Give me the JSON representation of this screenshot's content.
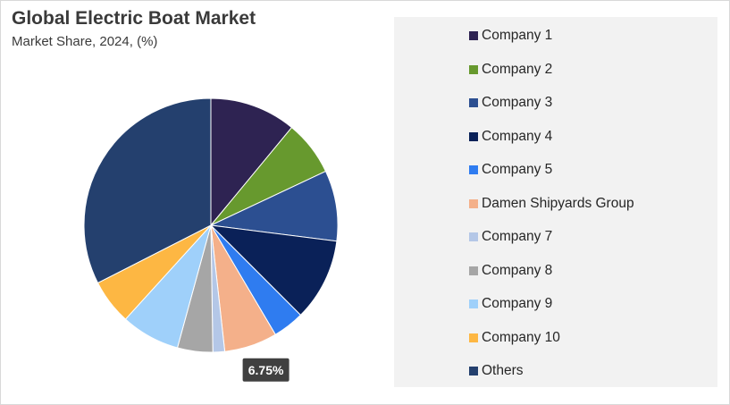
{
  "chart_data": {
    "type": "pie",
    "title": "Global Electric Boat Market",
    "subtitle": "Market Share, 2024, (%)",
    "slices": [
      {
        "label": "Company 1",
        "value": 11.0,
        "color": "#2e2352"
      },
      {
        "label": "Company 2",
        "value": 7.0,
        "color": "#67992e"
      },
      {
        "label": "Company 3",
        "value": 9.0,
        "color": "#2c4f91"
      },
      {
        "label": "Company 4",
        "value": 10.5,
        "color": "#0a2158"
      },
      {
        "label": "Company 5",
        "value": 4.0,
        "color": "#2f7cf0"
      },
      {
        "label": "Damen Shipyards Group",
        "value": 6.75,
        "color": "#f4b08a"
      },
      {
        "label": "Company 7",
        "value": 1.5,
        "color": "#b4c7e7"
      },
      {
        "label": "Company 8",
        "value": 4.5,
        "color": "#a6a6a6"
      },
      {
        "label": "Company 9",
        "value": 7.5,
        "color": "#9fd0fa"
      },
      {
        "label": "Company 10",
        "value": 5.75,
        "color": "#fdb743"
      },
      {
        "label": "Others",
        "value": 32.5,
        "color": "#24406e"
      }
    ],
    "data_labels": [
      {
        "slice": "Damen Shipyards Group",
        "text": "6.75%"
      }
    ],
    "legend_position": "right",
    "start_angle": "top, clockwise"
  }
}
